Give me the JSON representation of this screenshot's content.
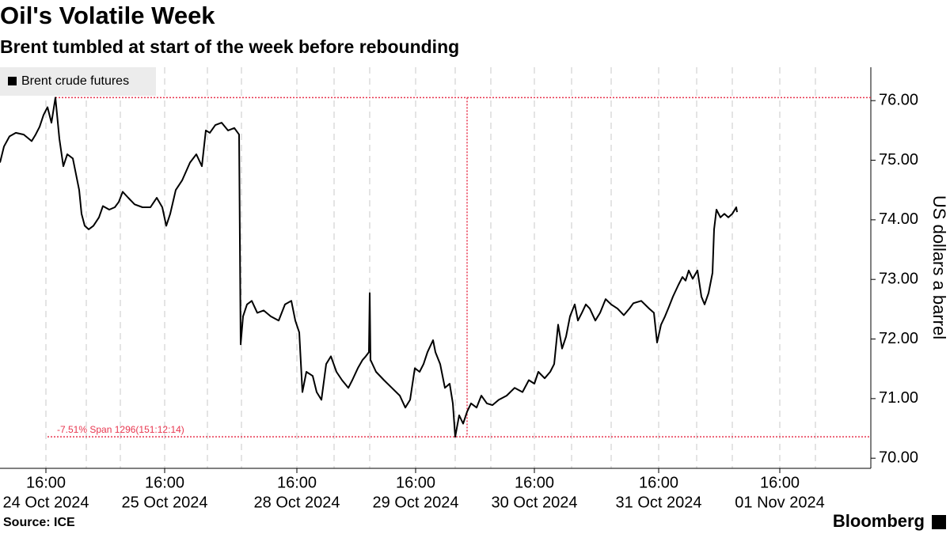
{
  "chart_data": {
    "type": "line",
    "title": "Oil's Volatile Week",
    "subtitle": "Brent tumbled at start of the week before rebounding",
    "y_axis_label": "US dollars a barrel",
    "source": "Source: ICE",
    "brand": "Bloomberg",
    "annotation": "-7.51% Span 1296(151:12:14)",
    "annotation_color": "#e8364f",
    "legend": "top-left",
    "xlim": [
      0,
      220
    ],
    "ylim": [
      69.83,
      76.56
    ],
    "yticks": [
      {
        "value": 70,
        "label": "70.00"
      },
      {
        "value": 71,
        "label": "71.00"
      },
      {
        "value": 72,
        "label": "72.00"
      },
      {
        "value": 73,
        "label": "73.00"
      },
      {
        "value": 74,
        "label": "74.00"
      },
      {
        "value": 75,
        "label": "75.00"
      },
      {
        "value": 76,
        "label": "76.00"
      }
    ],
    "xticks": [
      {
        "value": 11.6,
        "label": "16:00",
        "sublabel": "24 Oct 2024"
      },
      {
        "value": 41.6,
        "label": "16:00",
        "sublabel": "25 Oct 2024"
      },
      {
        "value": 75,
        "label": "16:00",
        "sublabel": "28 Oct 2024"
      },
      {
        "value": 105,
        "label": "16:00",
        "sublabel": "29 Oct 2024"
      },
      {
        "value": 135,
        "label": "16:00",
        "sublabel": "30 Oct 2024"
      },
      {
        "value": 166.4,
        "label": "16:00",
        "sublabel": "31 Oct 2024"
      },
      {
        "value": 197,
        "label": "16:00",
        "sublabel": "01 Nov 2024"
      }
    ],
    "xgrid": [
      21.8,
      30.4,
      52.4,
      61,
      84.4,
      93.4,
      115,
      124,
      144.4,
      154.4,
      176,
      185,
      206
    ],
    "series": [
      {
        "name": "Brent crude futures",
        "color": "#000000",
        "x": [
          0,
          1,
          2.4,
          4,
          6,
          8,
          9,
          10,
          11,
          12,
          13,
          14,
          15,
          16,
          17,
          18.4,
          20,
          20.6,
          21.4,
          22.4,
          23.6,
          25,
          26,
          27.6,
          29,
          30,
          31,
          32.4,
          34,
          36,
          38,
          39.6,
          41,
          42,
          43,
          44.4,
          46,
          48,
          49.6,
          51,
          52,
          53,
          54.4,
          56,
          57.6,
          59.2,
          60.4,
          60.8,
          61.4,
          62.4,
          63.6,
          65,
          66.6,
          68.4,
          70.4,
          72,
          73.6,
          74.6,
          75.6,
          76.4,
          77.4,
          79,
          80,
          81.2,
          82.4,
          83.6,
          85,
          86.4,
          88,
          89,
          90.4,
          91.6,
          92.4,
          93.2,
          93.4,
          93.6,
          95,
          97,
          99,
          101,
          102.4,
          103.6,
          104.8,
          106,
          107,
          108,
          109.4,
          110,
          111.2,
          112.4,
          113.6,
          114.4,
          115,
          116,
          117,
          118,
          119,
          120.4,
          121.6,
          123,
          124.4,
          126,
          128,
          130,
          132,
          133.6,
          135,
          136,
          137.6,
          139,
          140,
          141,
          142,
          143,
          144,
          145.2,
          146,
          147,
          148,
          149,
          150.4,
          151.6,
          153,
          154.4,
          156,
          157.6,
          159,
          160,
          162,
          164,
          165.2,
          166,
          167,
          168,
          169,
          170,
          171.4,
          172.4,
          173.2,
          174,
          175,
          176.2,
          177.2,
          178,
          179,
          180,
          180.4,
          181,
          182,
          183,
          184,
          185,
          186,
          186.2
        ],
        "values": [
          74.96,
          75.23,
          75.4,
          75.46,
          75.43,
          75.32,
          75.43,
          75.56,
          75.76,
          75.89,
          75.63,
          76.05,
          75.36,
          74.9,
          75.1,
          75.03,
          74.5,
          74.1,
          73.9,
          73.84,
          73.9,
          74.04,
          74.23,
          74.17,
          74.21,
          74.3,
          74.47,
          74.37,
          74.26,
          74.21,
          74.21,
          74.37,
          74.21,
          73.9,
          74.1,
          74.5,
          74.66,
          74.96,
          75.1,
          74.9,
          75.5,
          75.46,
          75.59,
          75.63,
          75.5,
          75.54,
          75.43,
          71.91,
          72.38,
          72.58,
          72.64,
          72.44,
          72.48,
          72.38,
          72.31,
          72.58,
          72.64,
          72.31,
          72.11,
          71.11,
          71.45,
          71.38,
          71.11,
          70.98,
          71.58,
          71.71,
          71.45,
          71.31,
          71.18,
          71.31,
          71.51,
          71.65,
          71.71,
          71.78,
          72.77,
          71.65,
          71.45,
          71.31,
          71.18,
          71.05,
          70.85,
          70.98,
          71.51,
          71.45,
          71.58,
          71.78,
          71.98,
          71.78,
          71.58,
          71.18,
          71.25,
          70.92,
          70.36,
          70.72,
          70.58,
          70.78,
          70.92,
          70.85,
          71.05,
          70.92,
          70.89,
          70.98,
          71.05,
          71.18,
          71.11,
          71.31,
          71.25,
          71.45,
          71.34,
          71.45,
          71.58,
          72.24,
          71.84,
          72.04,
          72.38,
          72.58,
          72.31,
          72.44,
          72.58,
          72.51,
          72.31,
          72.44,
          72.67,
          72.58,
          72.51,
          72.4,
          72.51,
          72.6,
          72.64,
          72.51,
          72.44,
          71.94,
          72.24,
          72.38,
          72.54,
          72.71,
          72.91,
          73.04,
          72.98,
          73.15,
          73.01,
          73.15,
          72.71,
          72.58,
          72.77,
          73.11,
          73.84,
          74.17,
          74.04,
          74.1,
          74.04,
          74.1,
          74.21,
          74.13
        ]
      }
    ]
  }
}
